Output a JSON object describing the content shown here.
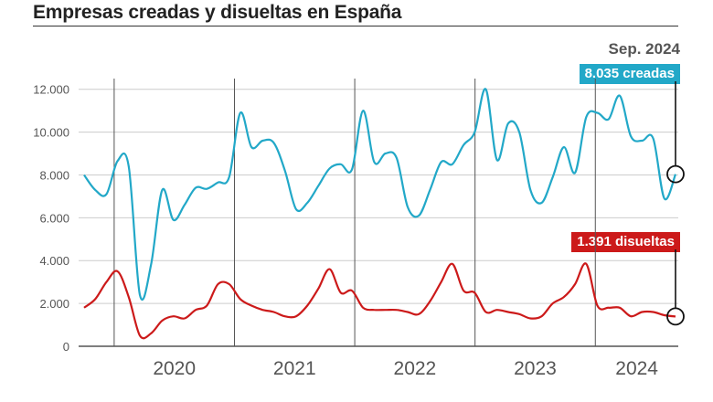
{
  "title": "Empresas creadas y disueltas en España",
  "date_label": "Sep. 2024",
  "annotations": {
    "created": "8.035 creadas",
    "dissolved": "1.391 disueltas"
  },
  "colors": {
    "created": "#22a8c8",
    "dissolved": "#cc1a1a",
    "grid": "#cccccc",
    "year_line": "#555555"
  },
  "chart_data": {
    "type": "line",
    "title": "Empresas creadas y disueltas en España",
    "xlabel": "",
    "ylabel": "",
    "ylim": [
      0,
      12500
    ],
    "y_ticks": [
      0,
      2000,
      4000,
      6000,
      8000,
      10000,
      12000
    ],
    "y_tick_labels": [
      "0",
      "2.000",
      "4.000",
      "6.000",
      "8.000",
      "10.000",
      "12.000"
    ],
    "x_tick_labels": [
      "2020",
      "2021",
      "2022",
      "2023",
      "2024"
    ],
    "year_boundaries": [
      0,
      12,
      24,
      36,
      48
    ],
    "x_start_month": -3,
    "x_end_month": 56,
    "grid": true,
    "series": [
      {
        "name": "Empresas creadas",
        "color_key": "created",
        "values": [
          8000,
          7300,
          7100,
          8650,
          8400,
          2400,
          3800,
          7300,
          5900,
          6600,
          7400,
          7350,
          7650,
          7900,
          10900,
          9300,
          9600,
          9500,
          8200,
          6400,
          6700,
          7500,
          8300,
          8500,
          8250,
          11000,
          8600,
          9000,
          8800,
          6500,
          6100,
          7300,
          8600,
          8500,
          9400,
          10000,
          12000,
          8700,
          10400,
          10000,
          7300,
          6700,
          7900,
          9300,
          8100,
          10700,
          10900,
          10600,
          11700,
          9800,
          9600,
          9700,
          6900,
          8035
        ]
      },
      {
        "name": "Empresas disueltas",
        "color_key": "dissolved",
        "values": [
          1800,
          2200,
          3000,
          3500,
          2300,
          500,
          600,
          1200,
          1400,
          1300,
          1700,
          1900,
          2900,
          2900,
          2200,
          1900,
          1700,
          1600,
          1400,
          1400,
          1900,
          2700,
          3600,
          2500,
          2600,
          1800,
          1700,
          1700,
          1700,
          1600,
          1500,
          2100,
          3000,
          3850,
          2600,
          2500,
          1600,
          1700,
          1600,
          1500,
          1300,
          1400,
          2000,
          2300,
          2900,
          3850,
          1900,
          1800,
          1800,
          1400,
          1600,
          1600,
          1450,
          1391
        ]
      }
    ]
  }
}
